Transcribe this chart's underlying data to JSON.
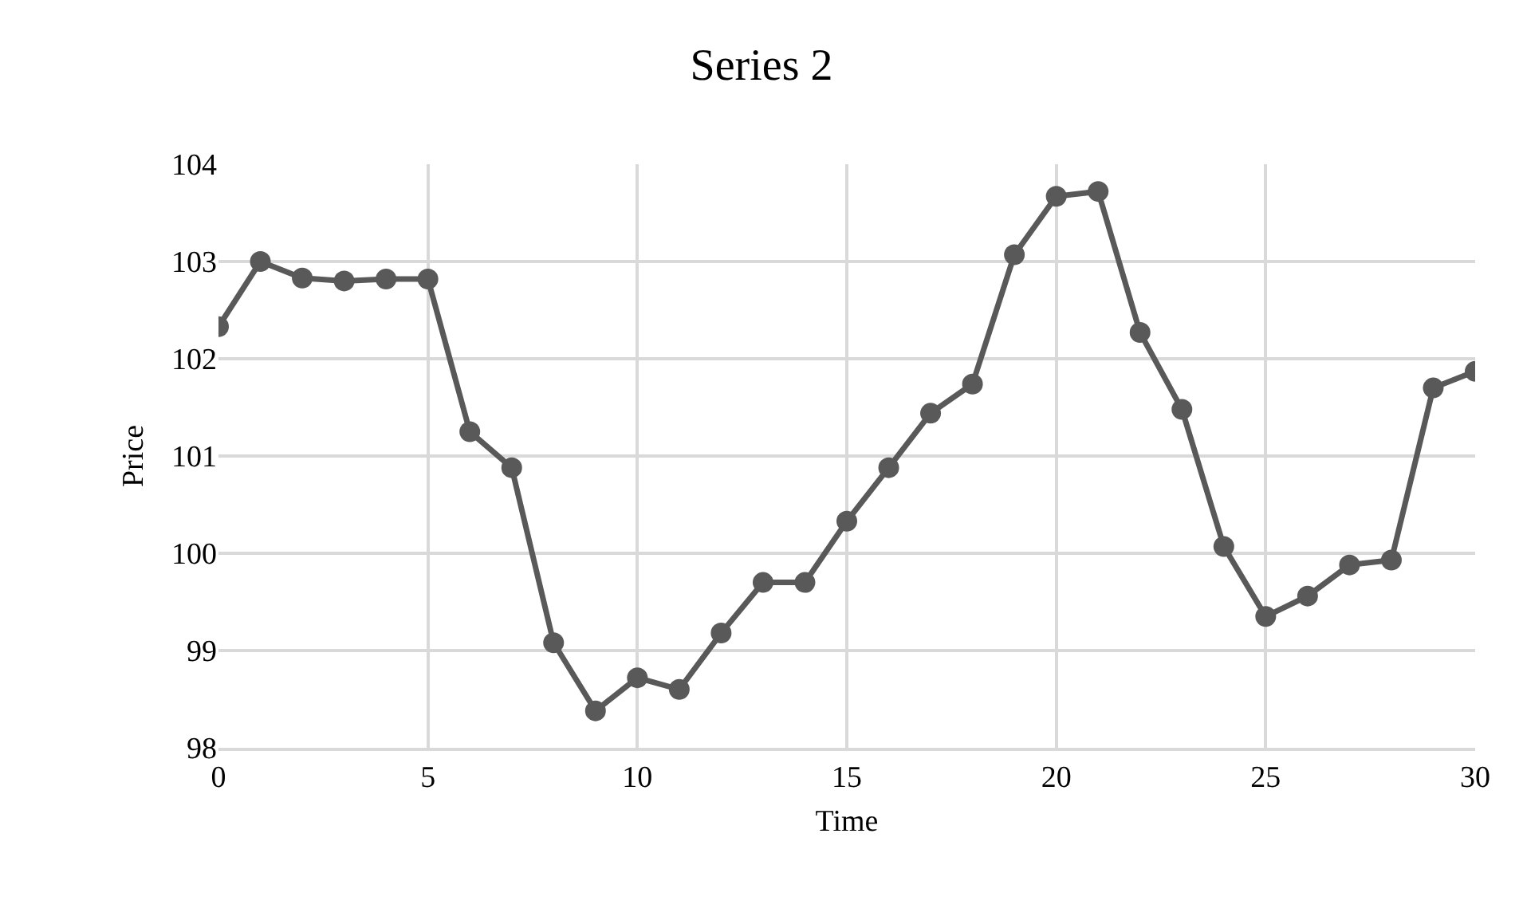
{
  "chart_data": {
    "type": "line",
    "title": "Series 2",
    "xlabel": "Time",
    "ylabel": "Price",
    "x": [
      0,
      1,
      2,
      3,
      4,
      5,
      6,
      7,
      8,
      9,
      10,
      11,
      12,
      13,
      14,
      15,
      16,
      17,
      18,
      19,
      20,
      21,
      22,
      23,
      24,
      25,
      26,
      27,
      28,
      29,
      30
    ],
    "series": [
      {
        "color": "#595959",
        "values": [
          102.33,
          103.0,
          102.83,
          102.8,
          102.82,
          102.82,
          101.25,
          100.88,
          99.08,
          98.38,
          98.72,
          98.6,
          99.18,
          99.7,
          99.7,
          100.33,
          100.88,
          101.44,
          101.74,
          103.07,
          103.67,
          103.72,
          102.27,
          101.48,
          100.07,
          99.35,
          99.56,
          99.88,
          99.93,
          101.7,
          101.87
        ]
      }
    ],
    "xlim": [
      0,
      30
    ],
    "xticks": [
      0,
      5,
      10,
      15,
      20,
      25,
      30
    ],
    "ylim": [
      98,
      104
    ],
    "yticks": [
      98,
      99,
      100,
      101,
      102,
      103,
      104
    ],
    "grid": true,
    "marker": "circle",
    "line_style": "solid"
  }
}
